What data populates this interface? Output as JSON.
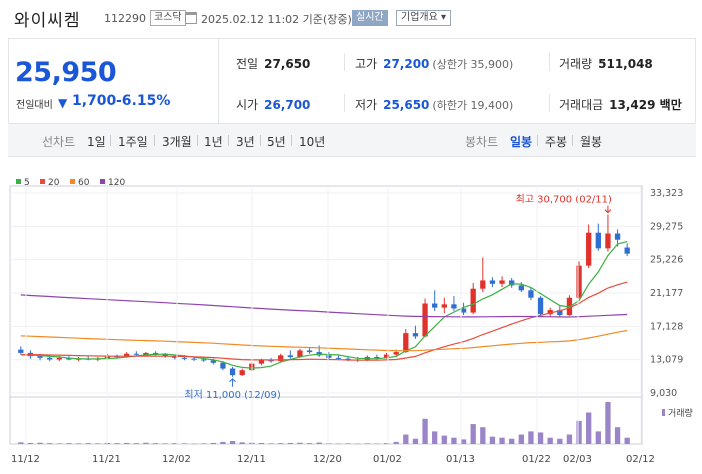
{
  "header": {
    "name": "와이씨켐",
    "code": "112290",
    "market": "코스닥",
    "timestamp": "2025.02.12 11:02 기준(장중)",
    "realtime_label": "실시간",
    "company_info_label": "기업개요 ▾"
  },
  "price": {
    "current": "25,950",
    "change_label": "전일대비",
    "change_arrow": "▼",
    "change": "1,700",
    "change_rate": "-6.15%"
  },
  "stats": {
    "prev_label": "전일",
    "prev": "27,650",
    "high_label": "고가",
    "high": "27,200",
    "upper_limit": "(상한가 35,900)",
    "volume_label": "거래량",
    "volume": "511,048",
    "open_label": "시가",
    "open": "26,700",
    "low_label": "저가",
    "low": "25,650",
    "lower_limit": "(하한가 19,400)",
    "amount_label": "거래대금",
    "amount": "13,429 백만"
  },
  "periods": {
    "line_chart_label": "선차트",
    "items": [
      "1일",
      "1주일",
      "3개월",
      "1년",
      "3년",
      "5년",
      "10년"
    ],
    "candle_chart_label": "봉차트",
    "candle_items": [
      "일봉",
      "주봉",
      "월봉"
    ],
    "selected_candle": "일봉"
  },
  "colors": {
    "up": "#e0312b",
    "down": "#2f6fd1",
    "ma5": "#3cb043",
    "ma20": "#e84c3d",
    "ma60": "#f08a24",
    "ma120": "#8e44ad",
    "volume": "#9b85c9"
  },
  "chart_data": {
    "type": "candlestick",
    "legend": [
      "5",
      "20",
      "60",
      "120"
    ],
    "y_ticks": [
      "33,323",
      "29,275",
      "25,226",
      "21,177",
      "17,128",
      "13,079",
      "9,030"
    ],
    "ylim": [
      9030,
      33323
    ],
    "x_ticks": [
      "11/12",
      "11/21",
      "12/02",
      "12/11",
      "12/20",
      "01/02",
      "01/13",
      "01/22",
      "02/03",
      "02/12"
    ],
    "high_annotation": "최고 30,700 (02/11)",
    "low_annotation": "최저 11,000 (12/09)",
    "volume_label": "거래량",
    "candles": [
      {
        "o": 14300,
        "h": 14700,
        "l": 13700,
        "c": 13900
      },
      {
        "o": 13900,
        "h": 14200,
        "l": 13200,
        "c": 13500
      },
      {
        "o": 13500,
        "h": 13800,
        "l": 13000,
        "c": 13300
      },
      {
        "o": 13300,
        "h": 13600,
        "l": 12900,
        "c": 13100
      },
      {
        "o": 13100,
        "h": 13500,
        "l": 12900,
        "c": 13300
      },
      {
        "o": 13300,
        "h": 13500,
        "l": 13000,
        "c": 13100
      },
      {
        "o": 13100,
        "h": 13400,
        "l": 12900,
        "c": 13200
      },
      {
        "o": 13200,
        "h": 13500,
        "l": 13000,
        "c": 13100
      },
      {
        "o": 13100,
        "h": 13400,
        "l": 12900,
        "c": 13200
      },
      {
        "o": 13200,
        "h": 13800,
        "l": 13100,
        "c": 13500
      },
      {
        "o": 13500,
        "h": 13700,
        "l": 13200,
        "c": 13400
      },
      {
        "o": 13400,
        "h": 14000,
        "l": 13300,
        "c": 13800
      },
      {
        "o": 13800,
        "h": 14100,
        "l": 13500,
        "c": 13700
      },
      {
        "o": 13700,
        "h": 14000,
        "l": 13500,
        "c": 13900
      },
      {
        "o": 13900,
        "h": 14100,
        "l": 13600,
        "c": 13800
      },
      {
        "o": 13800,
        "h": 13900,
        "l": 13300,
        "c": 13500
      },
      {
        "o": 13500,
        "h": 13700,
        "l": 13100,
        "c": 13300
      },
      {
        "o": 13300,
        "h": 13600,
        "l": 13000,
        "c": 13200
      },
      {
        "o": 13200,
        "h": 13400,
        "l": 12900,
        "c": 13100
      },
      {
        "o": 13100,
        "h": 13400,
        "l": 12800,
        "c": 13000
      },
      {
        "o": 13000,
        "h": 13200,
        "l": 12500,
        "c": 12700
      },
      {
        "o": 12700,
        "h": 12900,
        "l": 11800,
        "c": 12000
      },
      {
        "o": 12000,
        "h": 12200,
        "l": 11000,
        "c": 11200
      },
      {
        "o": 11200,
        "h": 12000,
        "l": 11100,
        "c": 11800
      },
      {
        "o": 11800,
        "h": 12800,
        "l": 11700,
        "c": 12600
      },
      {
        "o": 12600,
        "h": 13200,
        "l": 12400,
        "c": 13000
      },
      {
        "o": 13000,
        "h": 13300,
        "l": 12700,
        "c": 12900
      },
      {
        "o": 12900,
        "h": 13800,
        "l": 12800,
        "c": 13600
      },
      {
        "o": 13600,
        "h": 14200,
        "l": 13200,
        "c": 13400
      },
      {
        "o": 13400,
        "h": 14400,
        "l": 13300,
        "c": 14200
      },
      {
        "o": 14200,
        "h": 14500,
        "l": 13800,
        "c": 14000
      },
      {
        "o": 14000,
        "h": 14800,
        "l": 13400,
        "c": 13600
      },
      {
        "o": 13600,
        "h": 14000,
        "l": 13100,
        "c": 13300
      },
      {
        "o": 13300,
        "h": 13600,
        "l": 13000,
        "c": 13200
      },
      {
        "o": 13200,
        "h": 13500,
        "l": 12900,
        "c": 13100
      },
      {
        "o": 13100,
        "h": 13400,
        "l": 12800,
        "c": 13000
      },
      {
        "o": 13000,
        "h": 13600,
        "l": 12900,
        "c": 13400
      },
      {
        "o": 13400,
        "h": 13700,
        "l": 13100,
        "c": 13300
      },
      {
        "o": 13300,
        "h": 13900,
        "l": 13200,
        "c": 13700
      },
      {
        "o": 13700,
        "h": 14300,
        "l": 13500,
        "c": 14000
      },
      {
        "o": 14000,
        "h": 16800,
        "l": 13900,
        "c": 16300
      },
      {
        "o": 16300,
        "h": 17200,
        "l": 15600,
        "c": 15900
      },
      {
        "o": 15900,
        "h": 20500,
        "l": 15800,
        "c": 19900
      },
      {
        "o": 19900,
        "h": 21500,
        "l": 19000,
        "c": 19400
      },
      {
        "o": 19400,
        "h": 20600,
        "l": 18700,
        "c": 19800
      },
      {
        "o": 19800,
        "h": 20800,
        "l": 19000,
        "c": 19300
      },
      {
        "o": 19300,
        "h": 20000,
        "l": 18500,
        "c": 18800
      },
      {
        "o": 18800,
        "h": 22400,
        "l": 18600,
        "c": 21700
      },
      {
        "o": 21700,
        "h": 25500,
        "l": 21300,
        "c": 22700
      },
      {
        "o": 22700,
        "h": 23100,
        "l": 21900,
        "c": 22300
      },
      {
        "o": 22300,
        "h": 23200,
        "l": 21900,
        "c": 22700
      },
      {
        "o": 22700,
        "h": 23000,
        "l": 21800,
        "c": 22100
      },
      {
        "o": 22100,
        "h": 22500,
        "l": 21300,
        "c": 21500
      },
      {
        "o": 21500,
        "h": 21900,
        "l": 20300,
        "c": 20600
      },
      {
        "o": 20600,
        "h": 20800,
        "l": 18300,
        "c": 18600
      },
      {
        "o": 18600,
        "h": 19400,
        "l": 18300,
        "c": 19100
      },
      {
        "o": 19100,
        "h": 19600,
        "l": 18200,
        "c": 18500
      },
      {
        "o": 18500,
        "h": 20900,
        "l": 18400,
        "c": 20600
      },
      {
        "o": 20600,
        "h": 25000,
        "l": 20500,
        "c": 24500
      },
      {
        "o": 24500,
        "h": 29500,
        "l": 24200,
        "c": 28500
      },
      {
        "o": 28500,
        "h": 29600,
        "l": 26300,
        "c": 26600
      },
      {
        "o": 26600,
        "h": 30700,
        "l": 26200,
        "c": 28400
      },
      {
        "o": 28400,
        "h": 28900,
        "l": 26800,
        "c": 27650
      },
      {
        "o": 26700,
        "h": 27200,
        "l": 25650,
        "c": 25950
      }
    ],
    "volumes": [
      8,
      5,
      6,
      4,
      3,
      4,
      3,
      4,
      3,
      5,
      4,
      5,
      4,
      6,
      4,
      3,
      4,
      3,
      2,
      3,
      5,
      10,
      14,
      8,
      6,
      5,
      3,
      4,
      5,
      6,
      4,
      7,
      3,
      2,
      3,
      2,
      3,
      2,
      4,
      10,
      45,
      25,
      120,
      60,
      40,
      30,
      22,
      95,
      80,
      35,
      30,
      25,
      45,
      60,
      55,
      30,
      25,
      45,
      110,
      150,
      60,
      200,
      80,
      30
    ]
  }
}
